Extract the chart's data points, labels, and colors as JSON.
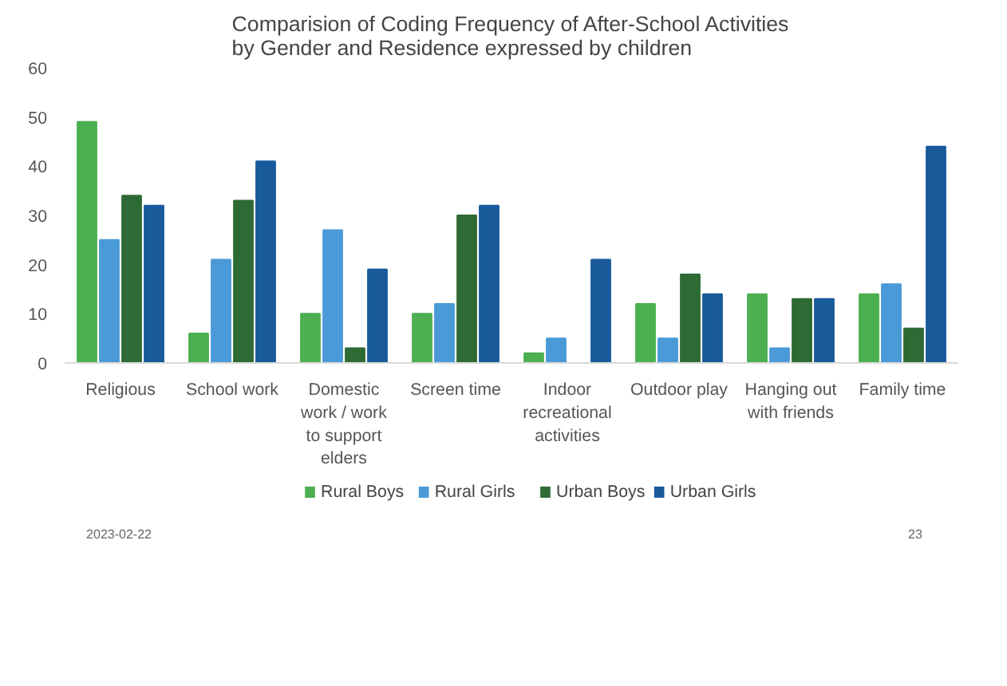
{
  "chart_data": {
    "type": "bar",
    "title": "Comparision of Coding Frequency of After-School Activities by Gender and Residence expressed by children",
    "categories": [
      "Religious",
      "School work",
      "Domestic\nwork / work\nto support\nelders",
      "Screen time",
      "Indoor\nrecreational\nactivities",
      "Outdoor play",
      "Hanging out\nwith friends",
      "Family time"
    ],
    "series": [
      {
        "name": "Rural Boys",
        "color": "#4caf50",
        "values": [
          49,
          6,
          10,
          10,
          2,
          12,
          14,
          14
        ]
      },
      {
        "name": "Rural Girls",
        "color": "#4a9ad8",
        "values": [
          25,
          21,
          27,
          12,
          5,
          5,
          3,
          16
        ]
      },
      {
        "name": "Urban Boys",
        "color": "#2e6b34",
        "values": [
          34,
          33,
          3,
          30,
          0,
          18,
          13,
          7
        ]
      },
      {
        "name": "Urban Girls",
        "color": "#185a9a",
        "values": [
          32,
          41,
          19,
          32,
          21,
          14,
          13,
          44
        ]
      }
    ],
    "ylim": [
      0,
      60
    ],
    "yticks": [
      0,
      10,
      20,
      30,
      40,
      50,
      60
    ],
    "grid": false,
    "legend": "bottom",
    "annotations": [
      "2023-02-22",
      "23"
    ]
  }
}
